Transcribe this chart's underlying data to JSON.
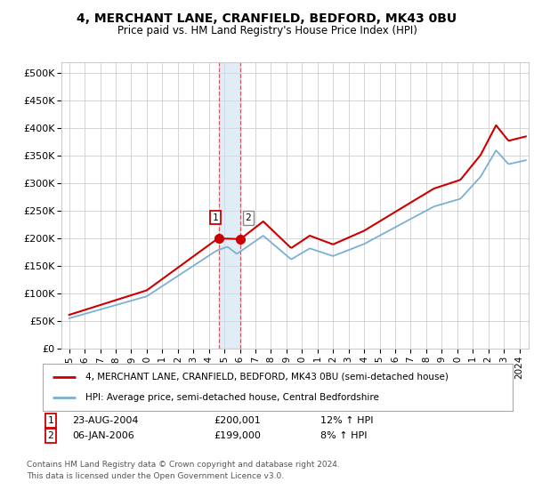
{
  "title1": "4, MERCHANT LANE, CRANFIELD, BEDFORD, MK43 0BU",
  "title2": "Price paid vs. HM Land Registry's House Price Index (HPI)",
  "ylabel_ticks": [
    "£0",
    "£50K",
    "£100K",
    "£150K",
    "£200K",
    "£250K",
    "£300K",
    "£350K",
    "£400K",
    "£450K",
    "£500K"
  ],
  "ytick_values": [
    0,
    50000,
    100000,
    150000,
    200000,
    250000,
    300000,
    350000,
    400000,
    450000,
    500000
  ],
  "ylim": [
    0,
    520000
  ],
  "xlim_left": 1994.5,
  "xlim_right": 2024.6,
  "legend_line1": "4, MERCHANT LANE, CRANFIELD, BEDFORD, MK43 0BU (semi-detached house)",
  "legend_line2": "HPI: Average price, semi-detached house, Central Bedfordshire",
  "sale1_label": "1",
  "sale2_label": "2",
  "sale1_date": "23-AUG-2004",
  "sale1_price": "£200,001",
  "sale1_hpi": "12% ↑ HPI",
  "sale2_date": "06-JAN-2006",
  "sale2_price": "£199,000",
  "sale2_hpi": "8% ↑ HPI",
  "footnote1": "Contains HM Land Registry data © Crown copyright and database right 2024.",
  "footnote2": "This data is licensed under the Open Government Licence v3.0.",
  "line_color_property": "#cc0000",
  "line_color_hpi": "#7ab0d4",
  "sale1_x": 2004.65,
  "sale2_x": 2006.04,
  "sale1_y": 200001,
  "sale2_y": 199000,
  "highlight_x_start": 2004.65,
  "highlight_x_end": 2006.04,
  "highlight_color": "#cce0f0",
  "highlight_alpha": 0.6
}
